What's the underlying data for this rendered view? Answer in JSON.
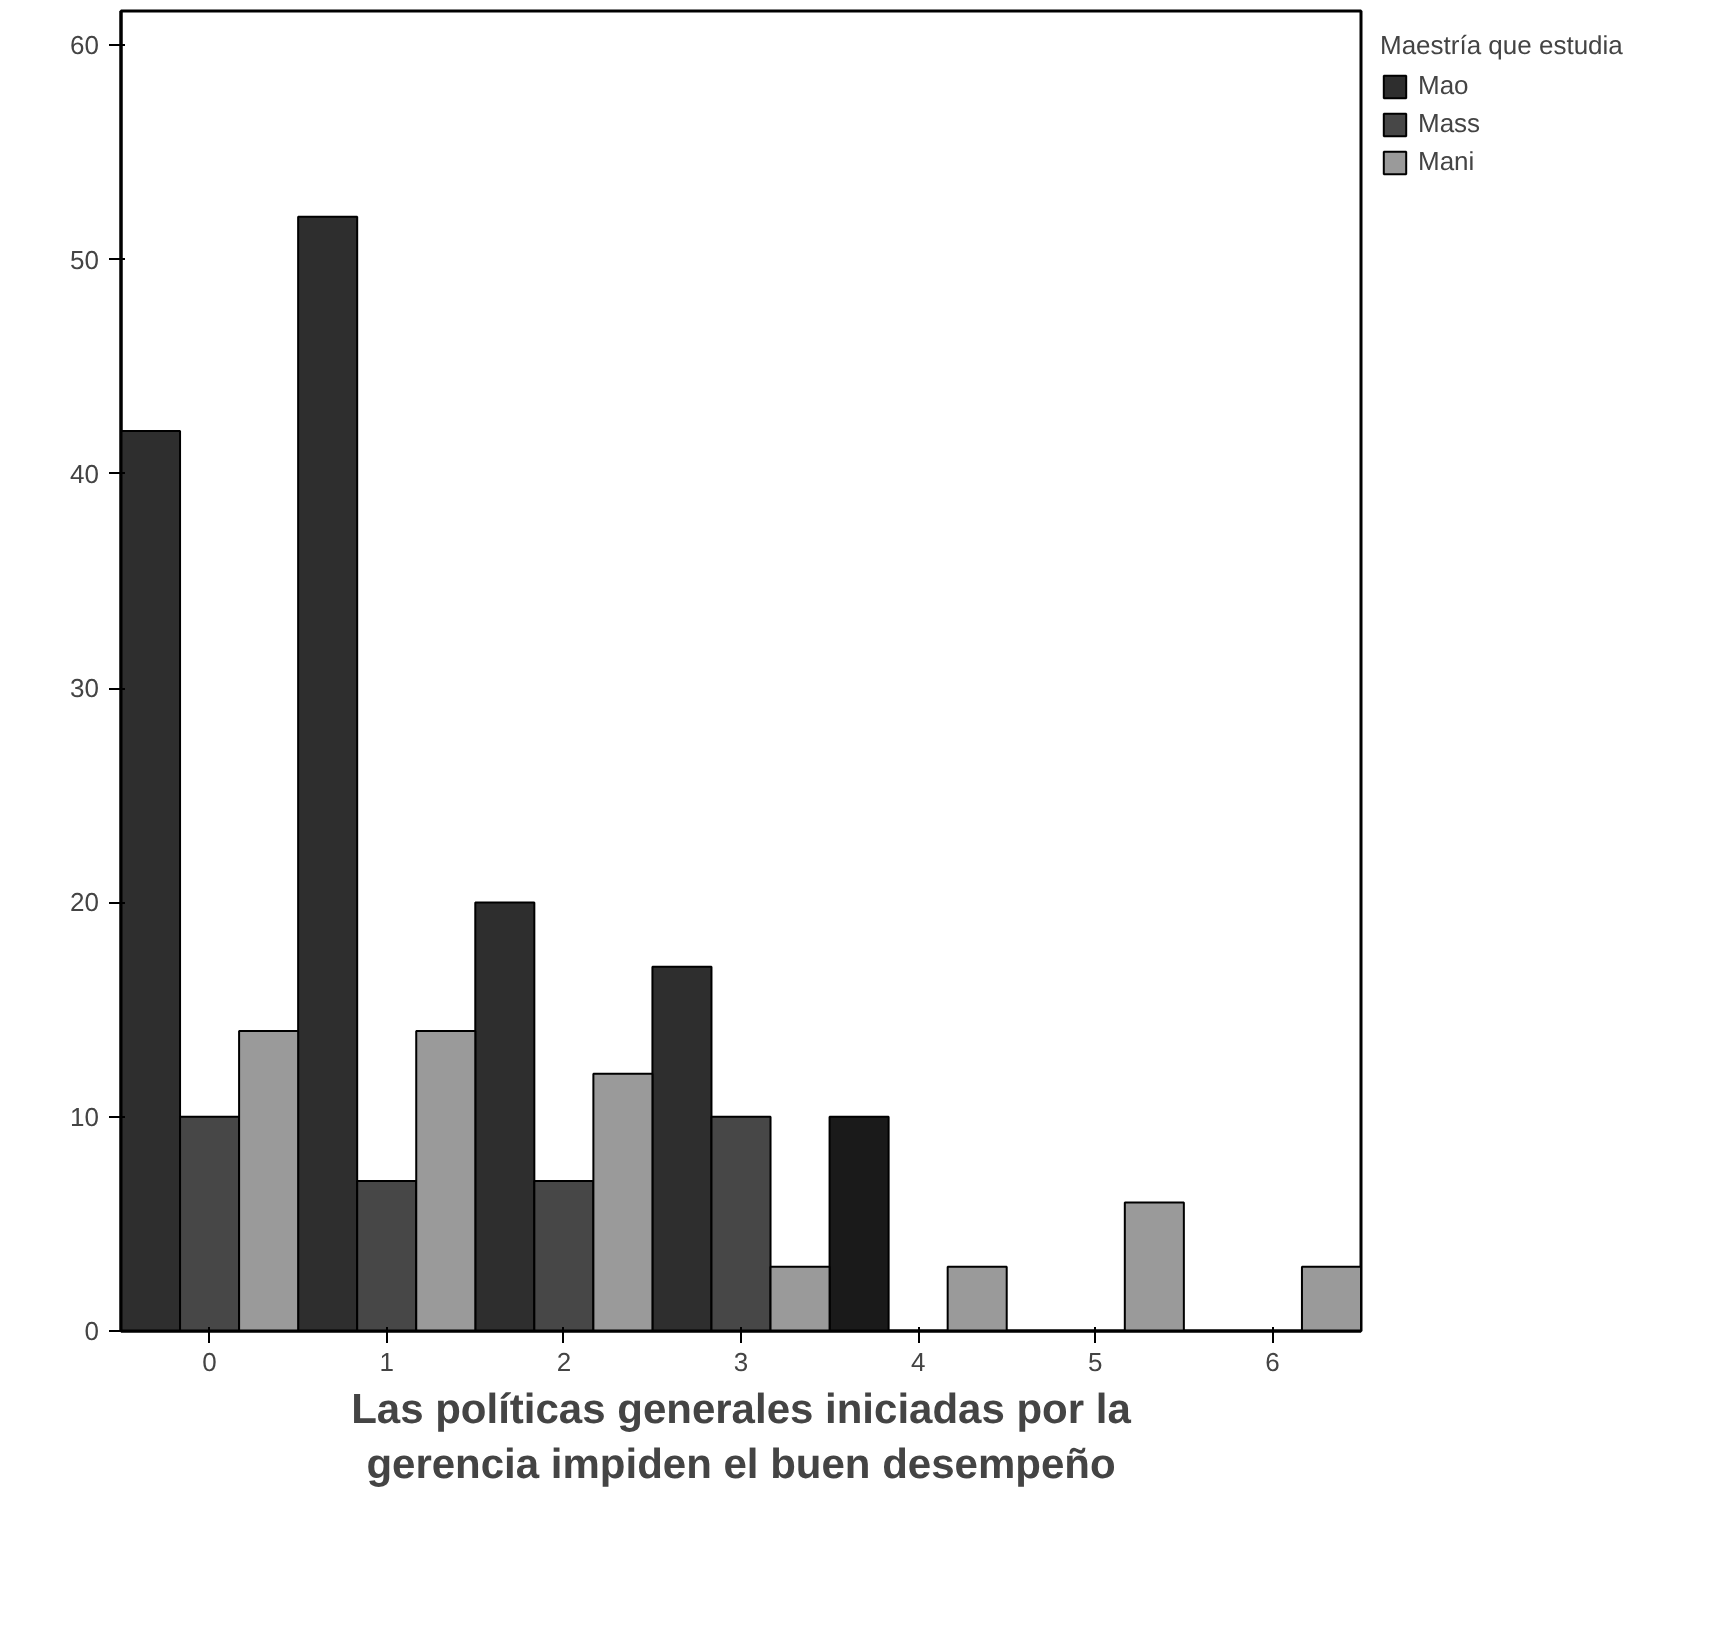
{
  "chart_data": {
    "type": "bar",
    "xlabel": "Las políticas generales iniciadas por la gerencia impiden el buen desempeño",
    "legend_title": "Maestría que estudia",
    "x": [
      0,
      1,
      2,
      3,
      4,
      5,
      6
    ],
    "xlim": [
      -0.5,
      6.5
    ],
    "xticks": [
      0,
      1,
      2,
      3,
      4,
      5,
      6
    ],
    "ylim": [
      0,
      61.6
    ],
    "yticks": [
      0,
      10,
      20,
      30,
      40,
      50,
      60
    ],
    "series": [
      {
        "name": "Mao",
        "color": "#2e2e2e",
        "colors": [
          "#2e2e2e",
          "#2e2e2e",
          "#2e2e2e",
          "#2e2e2e",
          "#1a1a1a",
          "#2e2e2e",
          "#2e2e2e"
        ],
        "values": [
          42,
          52,
          20,
          17,
          10,
          0,
          0
        ]
      },
      {
        "name": "Mass",
        "color": "#474747",
        "values": [
          10,
          7,
          7,
          10,
          0,
          0,
          0
        ]
      },
      {
        "name": "Mani",
        "color": "#9a9a9a",
        "values": [
          14,
          14,
          12,
          3,
          3,
          6,
          3
        ]
      }
    ],
    "grid": false,
    "legend": "top right"
  }
}
